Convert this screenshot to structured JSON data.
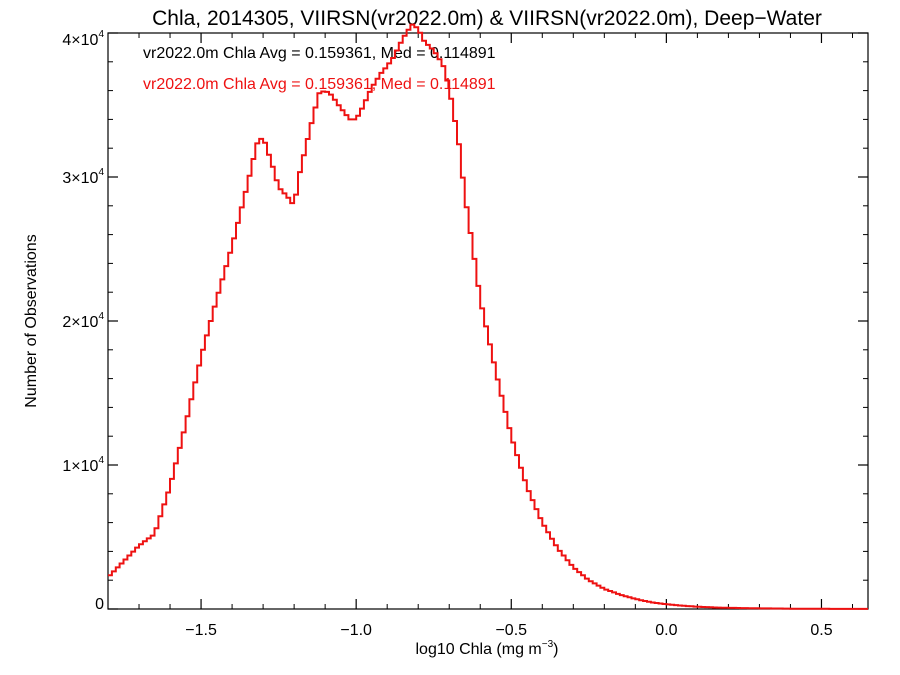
{
  "chart_data": {
    "type": "line",
    "title": "Chla, 2014305, VIIRSN(vr2022.0m) & VIIRSN(vr2022.0m), Deep−Water",
    "xlabel": "log10 Chla (mg m",
    "xlabel_exp": "−3",
    "xlabel_suffix": ")",
    "ylabel": "Number of Observations",
    "xlim": [
      -1.8,
      0.65
    ],
    "ylim": [
      0,
      40000
    ],
    "x_ticks": [
      {
        "value": -1.5,
        "label": "−1.5"
      },
      {
        "value": -1.0,
        "label": "−1.0"
      },
      {
        "value": -0.5,
        "label": "−0.5"
      },
      {
        "value": 0.0,
        "label": "0.0"
      },
      {
        "value": 0.5,
        "label": "0.5"
      }
    ],
    "y_ticks": [
      {
        "value": 0,
        "mant": "0",
        "exp": ""
      },
      {
        "value": 10000,
        "mant": "1×10",
        "exp": "4"
      },
      {
        "value": 20000,
        "mant": "2×10",
        "exp": "4"
      },
      {
        "value": 30000,
        "mant": "3×10",
        "exp": "4"
      },
      {
        "value": 40000,
        "mant": "4×10",
        "exp": "4"
      }
    ],
    "legend": [
      {
        "text": "vr2022.0m Chla Avg = 0.159361, Med = 0.114891",
        "color": "#000000"
      },
      {
        "text": "vr2022.0m Chla Avg = 0.159361, Med = 0.114891",
        "color": "#ee1111"
      }
    ],
    "series": [
      {
        "color": "#ee1111",
        "x": [
          -1.8,
          -1.75,
          -1.7,
          -1.65,
          -1.6,
          -1.55,
          -1.5,
          -1.45,
          -1.4,
          -1.35,
          -1.32,
          -1.3,
          -1.27,
          -1.25,
          -1.22,
          -1.2,
          -1.18,
          -1.15,
          -1.12,
          -1.1,
          -1.08,
          -1.05,
          -1.02,
          -1.0,
          -0.98,
          -0.95,
          -0.92,
          -0.9,
          -0.88,
          -0.85,
          -0.82,
          -0.8,
          -0.78,
          -0.75,
          -0.72,
          -0.7,
          -0.67,
          -0.65,
          -0.62,
          -0.6,
          -0.55,
          -0.5,
          -0.45,
          -0.4,
          -0.35,
          -0.3,
          -0.25,
          -0.2,
          -0.15,
          -0.1,
          -0.05,
          0.0,
          0.05,
          0.1,
          0.15,
          0.2,
          0.3,
          0.4,
          0.5,
          0.6,
          0.65
        ],
        "values": [
          2200,
          3300,
          4400,
          5200,
          8500,
          12800,
          17500,
          21500,
          25200,
          29500,
          32300,
          32800,
          30800,
          29300,
          28600,
          28000,
          30500,
          33200,
          35800,
          36000,
          35700,
          34800,
          34000,
          34000,
          34800,
          36200,
          37200,
          37700,
          38300,
          39600,
          40600,
          40300,
          39400,
          38800,
          37800,
          36200,
          32500,
          28800,
          24500,
          21500,
          16500,
          12000,
          8500,
          6000,
          4200,
          2900,
          2000,
          1400,
          1000,
          700,
          470,
          330,
          230,
          160,
          110,
          80,
          45,
          25,
          12,
          6,
          4
        ]
      }
    ]
  }
}
